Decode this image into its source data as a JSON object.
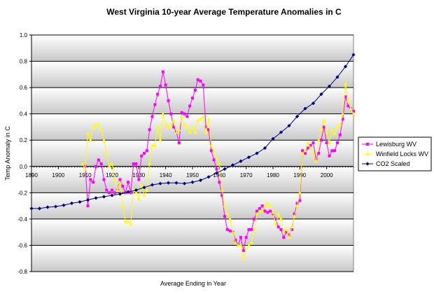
{
  "chart_data": {
    "type": "line",
    "title": "West Virginia 10-year Average Temperature Anomalies in C",
    "xlabel": "Average Ending in Year",
    "ylabel": "Temp Anomaly in C",
    "xlim": [
      1890,
      2010
    ],
    "ylim": [
      -0.8,
      1.0
    ],
    "x_ticks": [
      "1890",
      "1900",
      "1910",
      "1920",
      "1930",
      "1940",
      "1950",
      "1960",
      "1970",
      "1980",
      "1990",
      "2000"
    ],
    "y_ticks": [
      "1.0",
      "0.8",
      "0.6",
      "0.4",
      "0.2",
      "0.0",
      "-0.2",
      "-0.4",
      "-0.6",
      "-0.8"
    ],
    "grid": true,
    "legend_position": "right",
    "series": [
      {
        "name": "Lewisburg WV",
        "color": "#ff00ff",
        "marker": "square",
        "points": [
          [
            1910,
            0.0
          ],
          [
            1911,
            -0.3
          ],
          [
            1912,
            -0.1
          ],
          [
            1913,
            -0.12
          ],
          [
            1914,
            0.0
          ],
          [
            1915,
            0.05
          ],
          [
            1916,
            0.02
          ],
          [
            1917,
            -0.1
          ],
          [
            1918,
            -0.18
          ],
          [
            1919,
            -0.2
          ],
          [
            1920,
            -0.18
          ],
          [
            1921,
            -0.2
          ],
          [
            1922,
            -0.18
          ],
          [
            1923,
            -0.1
          ],
          [
            1924,
            -0.15
          ],
          [
            1925,
            -0.2
          ],
          [
            1926,
            -0.12
          ],
          [
            1927,
            -0.2
          ],
          [
            1928,
            0.02
          ],
          [
            1929,
            0.02
          ],
          [
            1930,
            -0.1
          ],
          [
            1931,
            0.08
          ],
          [
            1932,
            0.1
          ],
          [
            1933,
            0.12
          ],
          [
            1934,
            0.28
          ],
          [
            1935,
            0.38
          ],
          [
            1936,
            0.47
          ],
          [
            1937,
            0.55
          ],
          [
            1938,
            0.61
          ],
          [
            1939,
            0.72
          ],
          [
            1940,
            0.62
          ],
          [
            1941,
            0.5
          ],
          [
            1942,
            0.4
          ],
          [
            1943,
            0.3
          ],
          [
            1944,
            0.26
          ],
          [
            1945,
            0.18
          ],
          [
            1946,
            0.41
          ],
          [
            1947,
            0.4
          ],
          [
            1948,
            0.38
          ],
          [
            1949,
            0.46
          ],
          [
            1950,
            0.52
          ],
          [
            1951,
            0.58
          ],
          [
            1952,
            0.66
          ],
          [
            1953,
            0.65
          ],
          [
            1954,
            0.62
          ],
          [
            1955,
            0.3
          ],
          [
            1956,
            0.28
          ],
          [
            1957,
            0.12
          ],
          [
            1958,
            0.05
          ],
          [
            1959,
            -0.02
          ],
          [
            1960,
            -0.12
          ],
          [
            1961,
            -0.22
          ],
          [
            1962,
            -0.38
          ],
          [
            1963,
            -0.48
          ],
          [
            1964,
            -0.49
          ],
          [
            1965,
            -0.5
          ],
          [
            1966,
            -0.56
          ],
          [
            1967,
            -0.6
          ],
          [
            1968,
            -0.54
          ],
          [
            1969,
            -0.64
          ],
          [
            1970,
            -0.54
          ],
          [
            1971,
            -0.48
          ],
          [
            1972,
            -0.48
          ],
          [
            1973,
            -0.4
          ],
          [
            1974,
            -0.34
          ],
          [
            1975,
            -0.32
          ],
          [
            1976,
            -0.3
          ],
          [
            1977,
            -0.34
          ],
          [
            1978,
            -0.35
          ],
          [
            1979,
            -0.34
          ],
          [
            1980,
            -0.36
          ],
          [
            1981,
            -0.4
          ],
          [
            1982,
            -0.46
          ],
          [
            1983,
            -0.48
          ],
          [
            1984,
            -0.54
          ],
          [
            1985,
            -0.5
          ],
          [
            1986,
            -0.52
          ],
          [
            1987,
            -0.48
          ],
          [
            1988,
            -0.36
          ],
          [
            1989,
            -0.28
          ],
          [
            1990,
            -0.26
          ],
          [
            1991,
            0.12
          ],
          [
            1992,
            0.1
          ],
          [
            1993,
            0.14
          ],
          [
            1994,
            0.16
          ],
          [
            1995,
            0.18
          ],
          [
            1996,
            0.06
          ],
          [
            1997,
            0.1
          ],
          [
            1998,
            0.2
          ],
          [
            1999,
            0.3
          ],
          [
            2000,
            0.18
          ],
          [
            2001,
            0.08
          ],
          [
            2002,
            0.12
          ],
          [
            2003,
            0.12
          ],
          [
            2004,
            0.18
          ],
          [
            2005,
            0.24
          ],
          [
            2006,
            0.36
          ],
          [
            2007,
            0.53
          ],
          [
            2008,
            0.46
          ],
          [
            2009,
            0.44
          ],
          [
            2010,
            0.42
          ]
        ]
      },
      {
        "name": "Winfield Locks WV",
        "color": "#ffff00",
        "marker": "triangle",
        "points": [
          [
            1909,
            0.02
          ],
          [
            1910,
            -0.02
          ],
          [
            1911,
            0.25
          ],
          [
            1912,
            0.2
          ],
          [
            1913,
            0.3
          ],
          [
            1914,
            0.32
          ],
          [
            1915,
            0.32
          ],
          [
            1916,
            0.28
          ],
          [
            1917,
            0.2
          ],
          [
            1918,
            0.1
          ],
          [
            1919,
            0.0
          ],
          [
            1920,
            0.02
          ],
          [
            1921,
            -0.1
          ],
          [
            1922,
            -0.18
          ],
          [
            1923,
            -0.12
          ],
          [
            1924,
            -0.3
          ],
          [
            1925,
            -0.42
          ],
          [
            1926,
            -0.42
          ],
          [
            1927,
            -0.44
          ],
          [
            1928,
            -0.18
          ],
          [
            1929,
            -0.2
          ],
          [
            1930,
            -0.25
          ],
          [
            1931,
            -0.14
          ],
          [
            1932,
            -0.22
          ],
          [
            1933,
            -0.18
          ],
          [
            1934,
            0.02
          ],
          [
            1935,
            0.16
          ],
          [
            1936,
            0.16
          ],
          [
            1937,
            0.3
          ],
          [
            1938,
            0.2
          ],
          [
            1939,
            0.4
          ],
          [
            1940,
            0.32
          ],
          [
            1941,
            0.3
          ],
          [
            1942,
            0.31
          ],
          [
            1943,
            0.35
          ],
          [
            1944,
            0.26
          ],
          [
            1945,
            0.28
          ],
          [
            1946,
            0.38
          ],
          [
            1947,
            0.32
          ],
          [
            1948,
            0.3
          ],
          [
            1949,
            0.26
          ],
          [
            1950,
            0.3
          ],
          [
            1951,
            0.26
          ],
          [
            1952,
            0.35
          ],
          [
            1953,
            0.36
          ],
          [
            1954,
            0.38
          ],
          [
            1955,
            0.26
          ],
          [
            1956,
            0.36
          ],
          [
            1957,
            0.16
          ],
          [
            1958,
            0.12
          ],
          [
            1959,
            0.06
          ],
          [
            1960,
            0.02
          ],
          [
            1961,
            -0.18
          ],
          [
            1962,
            -0.3
          ],
          [
            1963,
            -0.36
          ],
          [
            1964,
            -0.4
          ],
          [
            1965,
            -0.5
          ],
          [
            1966,
            -0.58
          ],
          [
            1967,
            -0.6
          ],
          [
            1968,
            -0.6
          ],
          [
            1969,
            -0.7
          ],
          [
            1970,
            -0.62
          ],
          [
            1971,
            -0.6
          ],
          [
            1972,
            -0.58
          ],
          [
            1973,
            -0.48
          ],
          [
            1974,
            -0.36
          ],
          [
            1975,
            -0.34
          ],
          [
            1976,
            -0.34
          ],
          [
            1977,
            -0.3
          ],
          [
            1978,
            -0.28
          ],
          [
            1979,
            -0.3
          ],
          [
            1980,
            -0.35
          ],
          [
            1981,
            -0.44
          ],
          [
            1982,
            -0.36
          ],
          [
            1983,
            -0.4
          ],
          [
            1984,
            -0.5
          ],
          [
            1985,
            -0.48
          ],
          [
            1986,
            -0.54
          ],
          [
            1987,
            -0.46
          ],
          [
            1988,
            -0.38
          ],
          [
            1989,
            -0.3
          ],
          [
            1990,
            -0.2
          ],
          [
            1991,
            0.1
          ],
          [
            1992,
            0.12
          ],
          [
            1993,
            0.18
          ],
          [
            1994,
            0.14
          ],
          [
            1995,
            0.1
          ],
          [
            1996,
            0.04
          ],
          [
            1997,
            0.2
          ],
          [
            1998,
            0.28
          ],
          [
            1999,
            0.35
          ],
          [
            2000,
            0.26
          ],
          [
            2001,
            0.18
          ],
          [
            2002,
            0.28
          ],
          [
            2003,
            0.25
          ],
          [
            2004,
            0.3
          ],
          [
            2005,
            0.32
          ],
          [
            2006,
            0.4
          ],
          [
            2007,
            0.63
          ],
          [
            2008,
            0.5
          ],
          [
            2009,
            0.44
          ],
          [
            2010,
            0.4
          ]
        ]
      },
      {
        "name": "CO2 Scaled",
        "color": "#000080",
        "marker": "diamond",
        "points": [
          [
            1890,
            -0.32
          ],
          [
            1893,
            -0.32
          ],
          [
            1896,
            -0.31
          ],
          [
            1899,
            -0.305
          ],
          [
            1902,
            -0.295
          ],
          [
            1905,
            -0.28
          ],
          [
            1908,
            -0.27
          ],
          [
            1911,
            -0.255
          ],
          [
            1914,
            -0.24
          ],
          [
            1917,
            -0.23
          ],
          [
            1920,
            -0.22
          ],
          [
            1923,
            -0.21
          ],
          [
            1926,
            -0.195
          ],
          [
            1929,
            -0.18
          ],
          [
            1932,
            -0.16
          ],
          [
            1935,
            -0.14
          ],
          [
            1938,
            -0.13
          ],
          [
            1941,
            -0.125
          ],
          [
            1944,
            -0.125
          ],
          [
            1947,
            -0.13
          ],
          [
            1950,
            -0.12
          ],
          [
            1953,
            -0.105
          ],
          [
            1956,
            -0.08
          ],
          [
            1959,
            -0.05
          ],
          [
            1962,
            -0.02
          ],
          [
            1965,
            0.01
          ],
          [
            1968,
            0.04
          ],
          [
            1971,
            0.07
          ],
          [
            1974,
            0.1
          ],
          [
            1977,
            0.14
          ],
          [
            1980,
            0.21
          ],
          [
            1983,
            0.26
          ],
          [
            1986,
            0.31
          ],
          [
            1989,
            0.38
          ],
          [
            1992,
            0.44
          ],
          [
            1995,
            0.48
          ],
          [
            1998,
            0.55
          ],
          [
            2001,
            0.61
          ],
          [
            2004,
            0.68
          ],
          [
            2007,
            0.76
          ],
          [
            2010,
            0.85
          ]
        ]
      }
    ]
  }
}
